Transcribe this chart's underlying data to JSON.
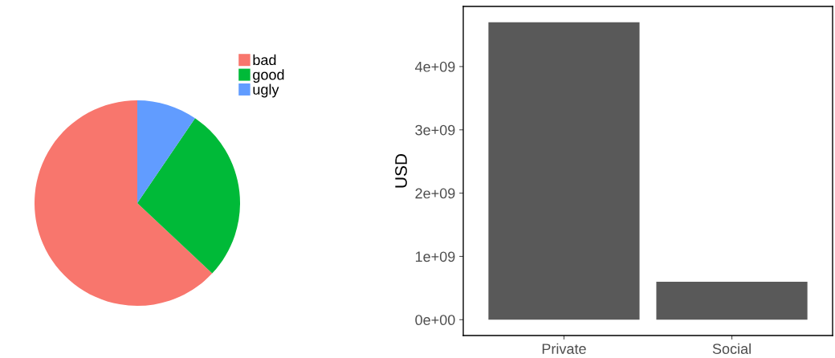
{
  "chart_data": [
    {
      "type": "pie",
      "categories": [
        "bad",
        "good",
        "ugly"
      ],
      "values": [
        63,
        27.5,
        9.5
      ],
      "colors": [
        "#f8766d",
        "#00ba38",
        "#619cff"
      ],
      "legend": "top right"
    },
    {
      "type": "bar",
      "categories": [
        "Private",
        "Social"
      ],
      "values": [
        4700000000,
        600000000
      ],
      "color": "#595959",
      "ylabel": "USD",
      "ylim": [
        -250000000,
        4950000000
      ],
      "yticks": [
        {
          "value": 0,
          "label": "0e+00"
        },
        {
          "value": 1000000000,
          "label": "1e+09"
        },
        {
          "value": 2000000000,
          "label": "2e+09"
        },
        {
          "value": 3000000000,
          "label": "3e+09"
        },
        {
          "value": 4000000000,
          "label": "4e+09"
        }
      ],
      "grid": false
    }
  ]
}
